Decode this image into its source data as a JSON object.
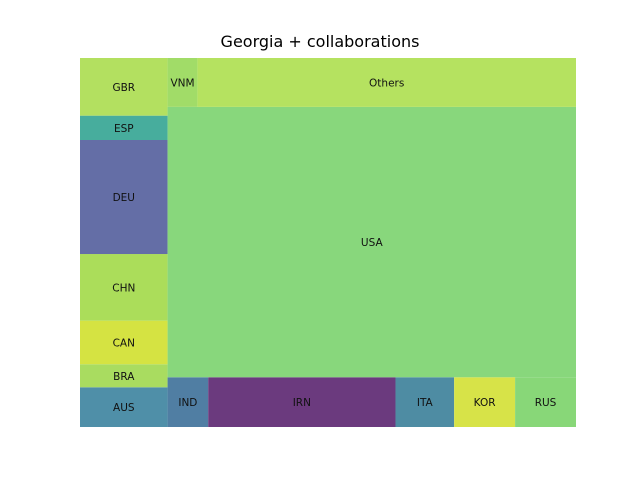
{
  "chart_data": {
    "type": "treemap",
    "title": "Georgia + collaborations",
    "cells": [
      {
        "label": "AUS",
        "value": 3.1,
        "color": "#4f8fa8"
      },
      {
        "label": "BRA",
        "value": 1.8,
        "color": "#a9dc60"
      },
      {
        "label": "CAN",
        "value": 3.4,
        "color": "#d5e342"
      },
      {
        "label": "CHN",
        "value": 5.2,
        "color": "#abdd5a"
      },
      {
        "label": "DEU",
        "value": 8.9,
        "color": "#646ea6"
      },
      {
        "label": "ESP",
        "value": 1.9,
        "color": "#47ad9d"
      },
      {
        "label": "GBR",
        "value": 4.5,
        "color": "#b3e060"
      },
      {
        "label": "IND",
        "value": 1.8,
        "color": "#507ea3"
      },
      {
        "label": "IRN",
        "value": 8.3,
        "color": "#6b3a7e"
      },
      {
        "label": "ITA",
        "value": 2.6,
        "color": "#4e8ca3"
      },
      {
        "label": "KOR",
        "value": 2.7,
        "color": "#d7e348"
      },
      {
        "label": "RUS",
        "value": 2.7,
        "color": "#88d778"
      },
      {
        "label": "USA",
        "value": 98.4,
        "color": "#88d77c"
      },
      {
        "label": "VNM",
        "value": 1.3,
        "color": "#a1dc68"
      },
      {
        "label": "Others",
        "value": 16.5,
        "color": "#b5e260"
      }
    ]
  }
}
